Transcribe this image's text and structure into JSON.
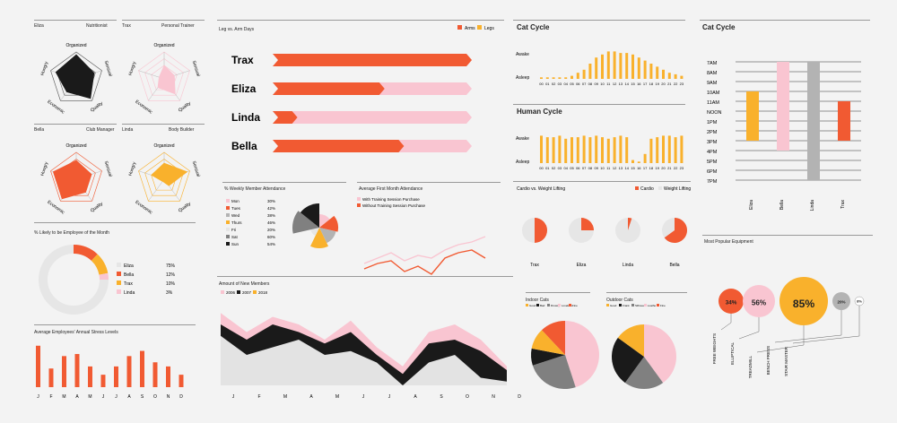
{
  "colors": {
    "orange": "#f15a32",
    "yellow": "#f9b12c",
    "pink": "#f9c5d1",
    "gray": "#808080",
    "lightgray": "#e6e6e6",
    "black": "#1a1a1a",
    "silver": "#b3b3b3"
  },
  "radar": {
    "axes": [
      "Organized",
      "Sensual",
      "Quality",
      "Economic",
      "Hungry"
    ],
    "people": [
      {
        "name": "Eliza",
        "role": "Nutritionist",
        "color": "#1a1a1a",
        "values": [
          0.9,
          0.7,
          0.9,
          0.6,
          0.8
        ]
      },
      {
        "name": "Trax",
        "role": "Personal Trainer",
        "color": "#f9c5d1",
        "values": [
          0.5,
          0.4,
          0.7,
          0.4,
          0.2
        ]
      },
      {
        "name": "Bella",
        "role": "Club Manager",
        "color": "#f15a32",
        "values": [
          0.7,
          0.6,
          0.6,
          0.9,
          0.9
        ]
      },
      {
        "name": "Linda",
        "role": "Body Builder",
        "color": "#f9b12c",
        "values": [
          0.6,
          0.9,
          0.3,
          0.1,
          0.5
        ]
      }
    ]
  },
  "employee_month": {
    "title": "% Likely to be Employee of the Month",
    "items": [
      {
        "name": "Eliza",
        "value": "75%",
        "color": "#e6e6e6"
      },
      {
        "name": "Bella",
        "value": "12%",
        "color": "#f15a32"
      },
      {
        "name": "Trax",
        "value": "10%",
        "color": "#f9b12c"
      },
      {
        "name": "Linda",
        "value": "3%",
        "color": "#f9c5d1"
      }
    ],
    "fractions": [
      0.75,
      0.12,
      0.1,
      0.03
    ]
  },
  "stress": {
    "title": "Average Employees' Annual Stress Levels",
    "months": [
      "J",
      "F",
      "M",
      "A",
      "M",
      "J",
      "J",
      "A",
      "S",
      "O",
      "N",
      "D"
    ],
    "values": [
      40,
      18,
      30,
      32,
      20,
      12,
      20,
      30,
      35,
      24,
      20,
      12
    ]
  },
  "legarm": {
    "title": "Leg vs. Arm Days",
    "legend": [
      "Arms",
      "Legs"
    ],
    "people": [
      {
        "name": "Trax",
        "arms": 1.0
      },
      {
        "name": "Eliza",
        "arms": 0.55
      },
      {
        "name": "Linda",
        "arms": 0.1
      },
      {
        "name": "Bella",
        "arms": 0.65
      }
    ]
  },
  "weekly": {
    "title": "% Weekly Member Attendance",
    "days": [
      {
        "d": "Mon",
        "v": "30%",
        "c": "#f9c5d1"
      },
      {
        "d": "Tues",
        "v": "42%",
        "c": "#f15a32"
      },
      {
        "d": "Wed",
        "v": "38%",
        "c": "#b3b3b3"
      },
      {
        "d": "Thurs",
        "v": "46%",
        "c": "#f9b12c"
      },
      {
        "d": "Fri",
        "v": "20%",
        "c": "#e6e6e6"
      },
      {
        "d": "Sat",
        "v": "60%",
        "c": "#808080"
      },
      {
        "d": "Sun",
        "v": "54%",
        "c": "#1a1a1a"
      }
    ],
    "nums": [
      30,
      42,
      38,
      46,
      20,
      60,
      54
    ]
  },
  "firstmonth": {
    "title": "Average First Month Attendance",
    "legend": [
      "With Training Session Purchase",
      "Without Training Session Purchase"
    ],
    "pink": [
      10,
      8,
      6,
      9,
      7,
      8,
      5,
      3,
      2,
      0
    ],
    "orange": [
      12,
      10,
      9,
      13,
      11,
      14,
      8,
      6,
      5,
      8
    ]
  },
  "newmembers": {
    "title": "Amount of New Members",
    "legend": [
      "2006",
      "2007",
      "2018"
    ],
    "months": [
      "J",
      "F",
      "M",
      "A",
      "M",
      "J",
      "J",
      "A",
      "S",
      "O",
      "N",
      "D"
    ],
    "pink": [
      95,
      70,
      90,
      80,
      60,
      85,
      50,
      25,
      70,
      80,
      60,
      25
    ],
    "black": [
      80,
      60,
      80,
      70,
      55,
      70,
      40,
      15,
      55,
      60,
      45,
      20
    ],
    "gray": [
      65,
      40,
      50,
      60,
      40,
      45,
      30,
      0,
      30,
      40,
      10,
      5
    ]
  },
  "catcycle": {
    "title": "Cat Cycle",
    "awake": "Awake",
    "asleep": "Asleep",
    "hours": [
      "00",
      "01",
      "02",
      "03",
      "04",
      "05",
      "06",
      "07",
      "08",
      "09",
      "10",
      "11",
      "12",
      "13",
      "14",
      "15",
      "16",
      "17",
      "18",
      "19",
      "20",
      "21",
      "22",
      "23"
    ],
    "values": [
      0.05,
      0.05,
      0.05,
      0.05,
      0.05,
      0.1,
      0.2,
      0.3,
      0.5,
      0.7,
      0.8,
      0.9,
      0.9,
      0.85,
      0.85,
      0.8,
      0.7,
      0.6,
      0.5,
      0.4,
      0.3,
      0.2,
      0.15,
      0.1
    ]
  },
  "humancycle": {
    "title": "Human Cycle",
    "awake": "Awake",
    "asleep": "Asleep",
    "hours": [
      "00",
      "01",
      "02",
      "03",
      "04",
      "05",
      "06",
      "07",
      "08",
      "09",
      "10",
      "11",
      "12",
      "13",
      "14",
      "15",
      "16",
      "17",
      "18",
      "19",
      "20",
      "21",
      "22",
      "23"
    ],
    "values": [
      0.9,
      0.85,
      0.85,
      0.9,
      0.8,
      0.85,
      0.85,
      0.9,
      0.85,
      0.9,
      0.85,
      0.8,
      0.85,
      0.9,
      0.85,
      0.1,
      0.05,
      0.3,
      0.8,
      0.85,
      0.9,
      0.9,
      0.85,
      0.9
    ]
  },
  "cardio": {
    "title": "Cardio vs. Weight Lifting",
    "legend": [
      "Cardio",
      "Weight Lifting"
    ],
    "people": [
      {
        "name": "Trax",
        "v": 0.5
      },
      {
        "name": "Eliza",
        "v": 0.25
      },
      {
        "name": "Linda",
        "v": 0.05
      },
      {
        "name": "Bella",
        "v": 0.65
      }
    ]
  },
  "indoor": {
    "title": "Indoor Cats",
    "legend": [
      "Good",
      "Bad",
      "Drowsy",
      "Loveless",
      "Fine"
    ]
  },
  "outdoor": {
    "title": "Outdoor Cats",
    "legend": [
      "Good",
      "Frank",
      "Silhouette",
      "Loathe",
      "Fine"
    ]
  },
  "catcycle2": {
    "title": "Cat Cycle",
    "times": [
      "7AM",
      "8AM",
      "9AM",
      "10AM",
      "11AM",
      "NOON",
      "1PM",
      "2PM",
      "3PM",
      "4PM",
      "5PM",
      "6PM",
      "7PM"
    ],
    "people": [
      {
        "name": "Eliza",
        "c": "#f9b12c",
        "s": 3,
        "e": 8
      },
      {
        "name": "Bella",
        "c": "#f9c5d1",
        "s": 0,
        "e": 9
      },
      {
        "name": "Linda",
        "c": "#b3b3b3",
        "s": 0,
        "e": 12
      },
      {
        "name": "Trax",
        "c": "#f15a32",
        "s": 4,
        "e": 8
      }
    ]
  },
  "equipment": {
    "title": "Most Popular Equipment",
    "items": [
      {
        "name": "FREE WEIGHTS",
        "v": "34%",
        "r": 14,
        "c": "#f15a32"
      },
      {
        "name": "ELLIPTICAL",
        "v": "56%",
        "r": 18,
        "c": "#f9c5d1"
      },
      {
        "name": "TREADMILL",
        "v": "85%",
        "r": 27,
        "c": "#f9b12c"
      },
      {
        "name": "BENCH PRESS",
        "v": "20%",
        "r": 10,
        "c": "#b3b3b3"
      },
      {
        "name": "STAIR MASTER",
        "v": "8%",
        "r": 5,
        "c": "#ffffff"
      }
    ]
  }
}
